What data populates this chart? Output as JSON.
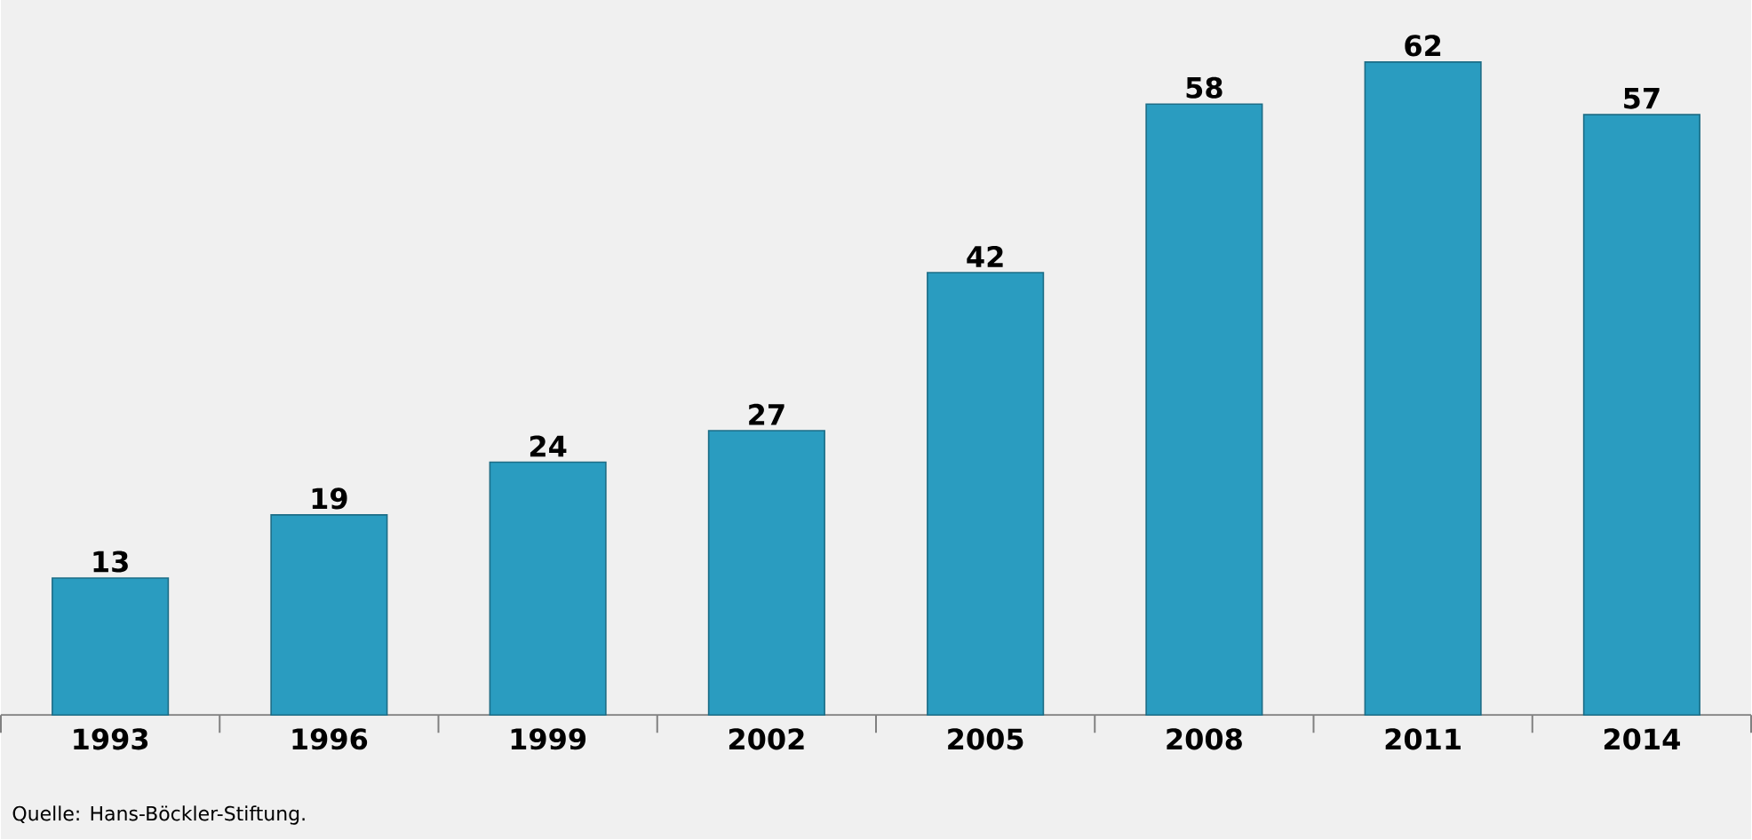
{
  "chart_data": {
    "type": "bar",
    "categories": [
      "1993",
      "1996",
      "1999",
      "2002",
      "2005",
      "2008",
      "2011",
      "2014"
    ],
    "values": [
      13,
      19,
      24,
      27,
      42,
      58,
      62,
      57
    ],
    "color": "#2a9cc0",
    "data_labels": true,
    "tick_labels": "x",
    "annotations": [
      "Quelle: Hans-Böckler-Stiftung."
    ]
  }
}
